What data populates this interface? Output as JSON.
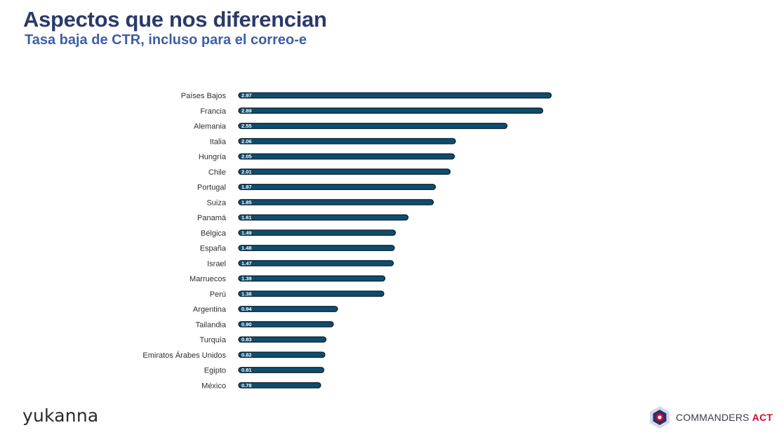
{
  "header": {
    "title": "Aspectos que nos diferencian",
    "subtitle": "Tasa baja de CTR, incluso para el correo-e"
  },
  "chart_data": {
    "type": "bar",
    "orientation": "horizontal",
    "categories": [
      "Países Bajos",
      "Francia",
      "Alemania",
      "Italia",
      "Hungría",
      "Chile",
      "Portugal",
      "Suiza",
      "Panamá",
      "Bélgica",
      "España",
      "Israel",
      "Marruecos",
      "Perú",
      "Argentina",
      "Tailandia",
      "Turquía",
      "Emiratos Árabes Unidos",
      "Egipto",
      "México"
    ],
    "values": [
      2.97,
      2.89,
      2.55,
      2.06,
      2.05,
      2.01,
      1.87,
      1.85,
      1.61,
      1.49,
      1.48,
      1.47,
      1.39,
      1.38,
      0.94,
      0.9,
      0.83,
      0.82,
      0.81,
      0.78
    ],
    "labels": [
      "2.97",
      "2.89",
      "2.55",
      "2.06",
      "2.05",
      "2.01",
      "1.87",
      "1.85",
      "1.61",
      "1.49",
      "1.48",
      "1.47",
      "1.39",
      "1.38",
      "0.94",
      "0.90",
      "0.83",
      "0.82",
      "0.81",
      "0.78"
    ],
    "xlim": [
      0,
      3
    ],
    "grid": false,
    "bar_color": "#0e4d6e",
    "label_color": "#ffffff"
  },
  "footer": {
    "left_logo": "yukanna",
    "right_logo_main": "COMMANDERS",
    "right_logo_accent": "ACT"
  }
}
